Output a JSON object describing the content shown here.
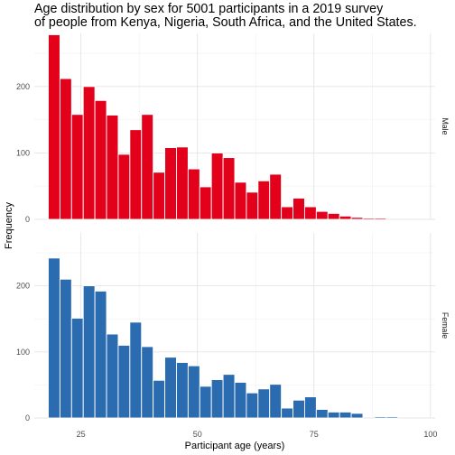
{
  "chart_data": {
    "type": "bar",
    "title_lines": [
      "Age distribution by sex for 5001 participants in a 2019 survey",
      "of people from Kenya, Nigeria, South Africa, and the United States."
    ],
    "xlabel": "Participant age (years)",
    "ylabel": "Frequency",
    "xlim": [
      15,
      101
    ],
    "ylim": [
      0,
      280
    ],
    "x_ticks": [
      25,
      50,
      75,
      100
    ],
    "y_ticks": [
      0,
      100,
      200
    ],
    "bin_width": 2.5,
    "bin_starts": [
      18,
      20.5,
      23,
      25.5,
      28,
      30.5,
      33,
      35.5,
      38,
      40.5,
      43,
      45.5,
      48,
      50.5,
      53,
      55.5,
      58,
      60.5,
      63,
      65.5,
      68,
      70.5,
      73,
      75.5,
      78,
      80.5,
      83,
      85.5,
      88,
      90.5,
      93,
      95.5,
      98
    ],
    "grid": true,
    "facets": [
      {
        "strip_label": "Male",
        "color": "#e3001b",
        "values": [
          278,
          212,
          158,
          200,
          179,
          157,
          98,
          135,
          158,
          71,
          108,
          109,
          76,
          49,
          100,
          93,
          56,
          41,
          58,
          68,
          19,
          32,
          19,
          12,
          9,
          5,
          3,
          2,
          2,
          0,
          0,
          0,
          0
        ]
      },
      {
        "strip_label": "Female",
        "color": "#2b6bb0",
        "values": [
          242,
          210,
          151,
          200,
          192,
          127,
          110,
          145,
          108,
          57,
          92,
          84,
          79,
          48,
          58,
          66,
          54,
          38,
          44,
          51,
          15,
          27,
          32,
          13,
          9,
          9,
          7,
          0,
          2,
          2,
          0,
          0,
          0
        ]
      }
    ]
  }
}
